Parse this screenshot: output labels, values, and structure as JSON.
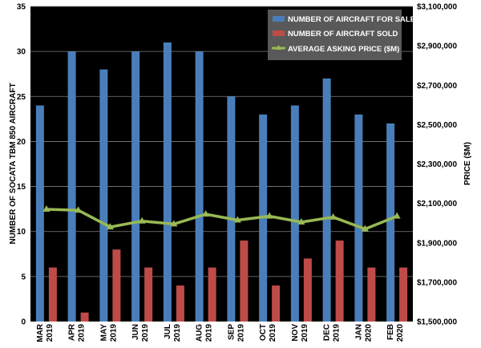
{
  "chart_data": {
    "type": "bar",
    "categories": [
      [
        "MAR",
        "2019"
      ],
      [
        "APR",
        "2019"
      ],
      [
        "MAY",
        "2019"
      ],
      [
        "JUN",
        "2019"
      ],
      [
        "JUL",
        "2019"
      ],
      [
        "AUG",
        "2019"
      ],
      [
        "SEP",
        "2019"
      ],
      [
        "OCT",
        "2019"
      ],
      [
        "NOV",
        "2019"
      ],
      [
        "DEC",
        "2019"
      ],
      [
        "JAN",
        "2020"
      ],
      [
        "FEB",
        "2020"
      ]
    ],
    "ylabel": "NUMBER OF SOCATA TBM 850 AIRCRAFT",
    "y2label": "PRICE ($M)",
    "ylim": [
      0,
      35
    ],
    "yticks": [
      0,
      5,
      10,
      15,
      20,
      25,
      30,
      35
    ],
    "y2lim": [
      1500000,
      3100000
    ],
    "y2ticks": [
      {
        "value": 1500000,
        "label": "$1,500,000"
      },
      {
        "value": 1700000,
        "label": "$1,700,000"
      },
      {
        "value": 1900000,
        "label": "$1,900,000"
      },
      {
        "value": 2100000,
        "label": "$2,100,000"
      },
      {
        "value": 2300000,
        "label": "$2,300,000"
      },
      {
        "value": 2500000,
        "label": "$2,500,000"
      },
      {
        "value": 2700000,
        "label": "$2,700,000"
      },
      {
        "value": 2900000,
        "label": "$2,900,000"
      },
      {
        "value": 3100000,
        "label": "$3,100,000"
      }
    ],
    "grid": true,
    "legend_position": "top-right",
    "plot_background": "#000000",
    "series": [
      {
        "name": "NUMBER OF AIRCRAFT FOR SALE",
        "kind": "bar",
        "axis": "left",
        "color": "#4a7ebb",
        "values": [
          24,
          30,
          28,
          30,
          31,
          30,
          25,
          23,
          24,
          27,
          23,
          22
        ]
      },
      {
        "name": "NUMBER OF AIRCRAFT SOLD",
        "kind": "bar",
        "axis": "left",
        "color": "#be4b48",
        "values": [
          6,
          1,
          8,
          6,
          4,
          6,
          9,
          4,
          7,
          9,
          6,
          6
        ]
      },
      {
        "name": "AVERAGE ASKING PRICE ($M)",
        "kind": "line",
        "axis": "right",
        "color": "#98b954",
        "values": [
          2070000,
          2065000,
          1980000,
          2010000,
          1995000,
          2045000,
          2015000,
          2035000,
          2005000,
          2030000,
          1970000,
          2035000
        ]
      }
    ]
  }
}
